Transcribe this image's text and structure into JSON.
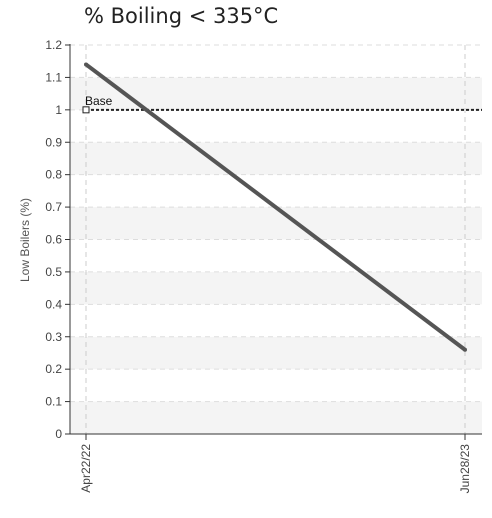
{
  "chart_data": {
    "type": "line",
    "title": "% Boiling < 335°C",
    "ylabel": "Low Boilers (%)",
    "xlabel": "",
    "ylim": [
      0,
      1.2
    ],
    "yticks": [
      "0",
      "0.1",
      "0.2",
      "0.3",
      "0.4",
      "0.5",
      "0.6",
      "0.7",
      "0.8",
      "0.9",
      "1",
      "1.1",
      "1.2"
    ],
    "x": [
      "Apr22/22",
      "Jun28/23"
    ],
    "series": [
      {
        "values": [
          1.14,
          0.26
        ],
        "color": "#555555"
      }
    ],
    "base_line": {
      "label": "Base",
      "value": 1.0,
      "color": "#222222"
    },
    "grid": true,
    "band_colors": [
      "#f4f4f4",
      "#ffffff"
    ]
  }
}
